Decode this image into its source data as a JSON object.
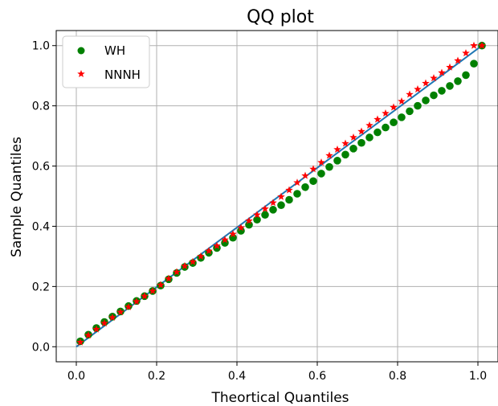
{
  "chart_data": {
    "type": "scatter",
    "title": "QQ plot",
    "xlabel": "Theortical Quantiles",
    "ylabel": "Sample Quantiles",
    "xlim": [
      -0.05,
      1.05
    ],
    "ylim": [
      -0.05,
      1.05
    ],
    "xticks": [
      "0.0",
      "0.2",
      "0.4",
      "0.6",
      "0.8",
      "1.0"
    ],
    "yticks": [
      "0.0",
      "0.2",
      "0.4",
      "0.6",
      "0.8",
      "1.0"
    ],
    "xtick_values": [
      0,
      0.2,
      0.4,
      0.6,
      0.8,
      1.0
    ],
    "ytick_values": [
      0,
      0.2,
      0.4,
      0.6,
      0.8,
      1.0
    ],
    "grid": true,
    "legend_position": "top-left",
    "x": [
      0.01,
      0.03,
      0.05,
      0.07,
      0.09,
      0.11,
      0.13,
      0.15,
      0.17,
      0.19,
      0.21,
      0.23,
      0.25,
      0.27,
      0.29,
      0.31,
      0.33,
      0.35,
      0.37,
      0.39,
      0.41,
      0.43,
      0.45,
      0.47,
      0.49,
      0.51,
      0.53,
      0.55,
      0.57,
      0.59,
      0.61,
      0.63,
      0.65,
      0.67,
      0.69,
      0.71,
      0.73,
      0.75,
      0.77,
      0.79,
      0.81,
      0.83,
      0.85,
      0.87,
      0.89,
      0.91,
      0.93,
      0.95,
      0.97,
      0.99,
      1.01
    ],
    "series": [
      {
        "name": "WH",
        "marker": "circle",
        "color": "#008000",
        "values": [
          0.018,
          0.04,
          0.062,
          0.082,
          0.1,
          0.117,
          0.135,
          0.152,
          0.168,
          0.185,
          0.203,
          0.224,
          0.245,
          0.265,
          0.278,
          0.295,
          0.312,
          0.328,
          0.345,
          0.362,
          0.385,
          0.405,
          0.422,
          0.438,
          0.455,
          0.47,
          0.488,
          0.508,
          0.53,
          0.55,
          0.575,
          0.597,
          0.618,
          0.638,
          0.658,
          0.677,
          0.695,
          0.712,
          0.728,
          0.745,
          0.762,
          0.782,
          0.8,
          0.818,
          0.835,
          0.85,
          0.866,
          0.882,
          0.902,
          0.94,
          1.0
        ]
      },
      {
        "name": "NNNH",
        "marker": "star",
        "color": "#ff0000",
        "values": [
          0.015,
          0.038,
          0.058,
          0.078,
          0.097,
          0.115,
          0.132,
          0.15,
          0.168,
          0.185,
          0.205,
          0.226,
          0.248,
          0.268,
          0.282,
          0.3,
          0.318,
          0.335,
          0.355,
          0.374,
          0.395,
          0.418,
          0.438,
          0.458,
          0.478,
          0.498,
          0.52,
          0.545,
          0.568,
          0.59,
          0.612,
          0.635,
          0.655,
          0.675,
          0.695,
          0.715,
          0.735,
          0.755,
          0.775,
          0.795,
          0.815,
          0.838,
          0.855,
          0.875,
          0.892,
          0.91,
          0.928,
          0.95,
          0.975,
          1.0,
          1.0
        ]
      }
    ],
    "reference_line": {
      "color": "#1f77b4",
      "from": [
        0.0,
        0.0
      ],
      "to": [
        1.01,
        1.0
      ]
    }
  }
}
